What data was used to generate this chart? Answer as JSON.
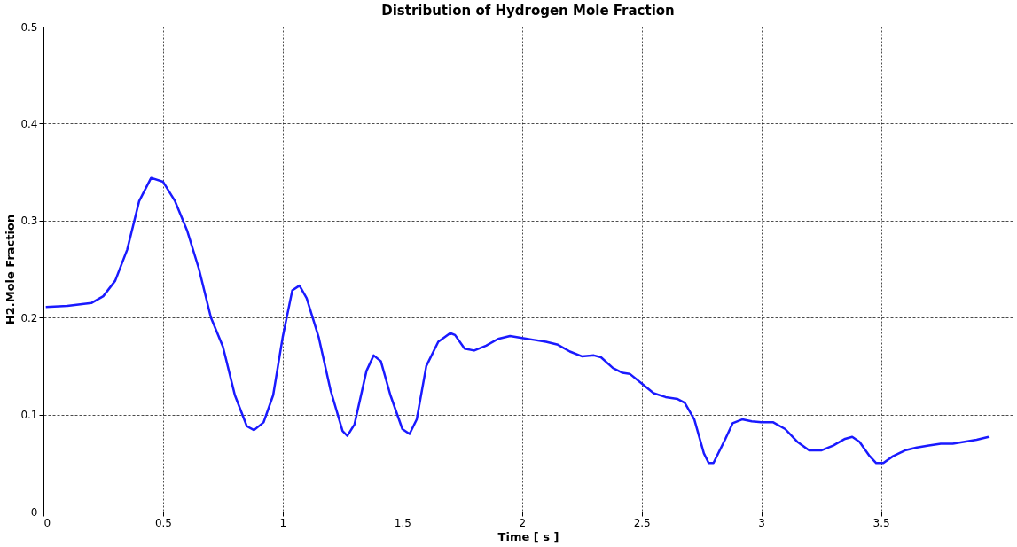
{
  "chart_data": {
    "type": "line",
    "title": "Distribution of Hydrogen Mole Fraction",
    "xlabel": "Time [ s ]",
    "ylabel": "H2.Mole Fraction",
    "xlim": [
      0,
      4.05
    ],
    "xticks": [
      0,
      0.5,
      1,
      1.5,
      2,
      2.5,
      3,
      3.5
    ],
    "ylim": [
      0,
      0.5
    ],
    "yticks": [
      0,
      0.1,
      0.2,
      0.3,
      0.4,
      0.5
    ],
    "grid": true,
    "line_style": "solid",
    "marker": "none",
    "series": [
      {
        "color": "#1a1aff",
        "x": [
          0.01,
          0.1,
          0.2,
          0.25,
          0.3,
          0.35,
          0.4,
          0.45,
          0.5,
          0.55,
          0.6,
          0.65,
          0.7,
          0.75,
          0.8,
          0.85,
          0.88,
          0.92,
          0.96,
          1.0,
          1.04,
          1.07,
          1.1,
          1.15,
          1.2,
          1.25,
          1.27,
          1.3,
          1.35,
          1.38,
          1.41,
          1.45,
          1.5,
          1.53,
          1.56,
          1.6,
          1.65,
          1.7,
          1.72,
          1.76,
          1.8,
          1.85,
          1.9,
          1.95,
          2.0,
          2.05,
          2.1,
          2.15,
          2.2,
          2.25,
          2.3,
          2.33,
          2.38,
          2.42,
          2.45,
          2.5,
          2.55,
          2.6,
          2.65,
          2.68,
          2.72,
          2.76,
          2.78,
          2.8,
          2.85,
          2.88,
          2.92,
          2.96,
          3.0,
          3.05,
          3.1,
          3.15,
          3.2,
          3.25,
          3.3,
          3.35,
          3.38,
          3.41,
          3.45,
          3.48,
          3.51,
          3.55,
          3.6,
          3.65,
          3.7,
          3.75,
          3.8,
          3.85,
          3.9,
          3.95
        ],
        "values": [
          0.211,
          0.212,
          0.215,
          0.222,
          0.238,
          0.27,
          0.32,
          0.344,
          0.34,
          0.32,
          0.29,
          0.25,
          0.2,
          0.17,
          0.12,
          0.088,
          0.084,
          0.092,
          0.12,
          0.18,
          0.228,
          0.233,
          0.22,
          0.18,
          0.125,
          0.083,
          0.078,
          0.09,
          0.145,
          0.161,
          0.155,
          0.12,
          0.085,
          0.08,
          0.095,
          0.15,
          0.175,
          0.184,
          0.182,
          0.168,
          0.166,
          0.171,
          0.178,
          0.181,
          0.179,
          0.177,
          0.175,
          0.172,
          0.165,
          0.16,
          0.161,
          0.159,
          0.148,
          0.143,
          0.142,
          0.132,
          0.122,
          0.118,
          0.116,
          0.112,
          0.095,
          0.06,
          0.05,
          0.05,
          0.075,
          0.091,
          0.095,
          0.093,
          0.092,
          0.092,
          0.085,
          0.072,
          0.063,
          0.063,
          0.068,
          0.075,
          0.077,
          0.072,
          0.058,
          0.05,
          0.05,
          0.057,
          0.063,
          0.066,
          0.068,
          0.07,
          0.07,
          0.072,
          0.074,
          0.077
        ]
      }
    ]
  }
}
